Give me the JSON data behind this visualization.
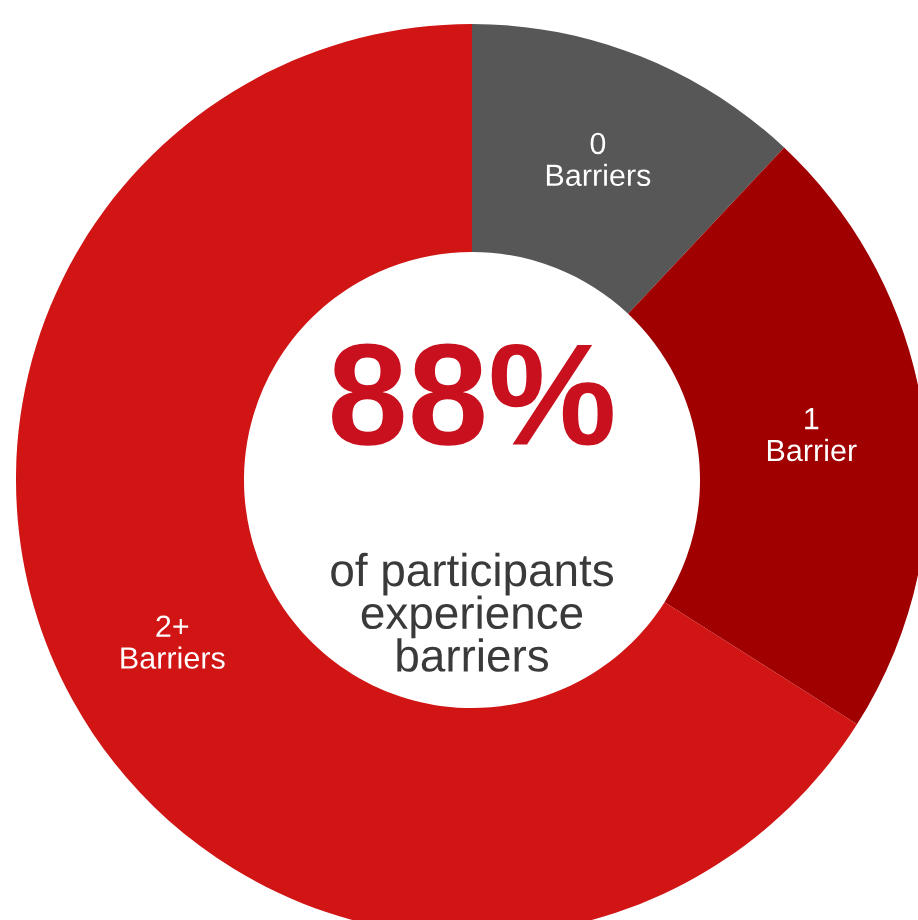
{
  "chart_data": {
    "type": "donut",
    "categories": [
      "0\nBarriers",
      "1\nBarrier",
      "2+\nBarriers"
    ],
    "values": [
      12,
      22,
      66
    ],
    "colors": [
      "#575757",
      "#a00000",
      "#d11414"
    ],
    "annotations": [
      "88%",
      "of participants\nexperience\nbarriers"
    ],
    "legend": false
  }
}
